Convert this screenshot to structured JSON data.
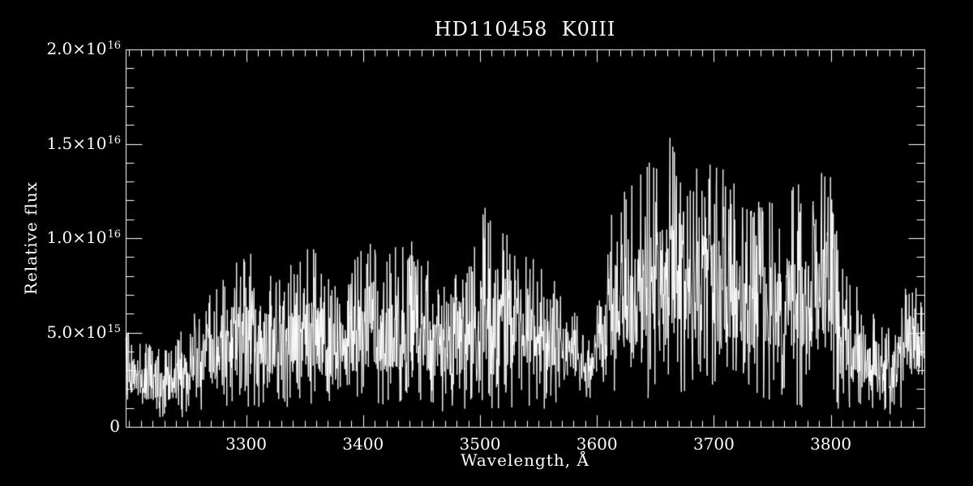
{
  "title": "HD110458  K0III",
  "colors": {
    "background": "#000000",
    "foreground": "#ffffff"
  },
  "chart_data": {
    "type": "line",
    "title": "HD110458  K0III",
    "xlabel": "Wavelength, Å",
    "ylabel": "Relative flux",
    "xlim": [
      3197,
      3880
    ],
    "ylim": [
      0,
      2e+16
    ],
    "grid": false,
    "legend": false,
    "line_color": "#ffffff",
    "x_major_ticks": [
      3300,
      3400,
      3500,
      3600,
      3700,
      3800
    ],
    "x_minor_step": 10,
    "y_major_ticks": [
      0,
      5000000000000000.0,
      1e+16,
      1.5e+16,
      2e+16
    ],
    "y_tick_labels": [
      "0",
      "5.0×10^15",
      "1.0×10^16",
      "1.5×10^16",
      "2.0×10^16"
    ],
    "y_minor_step": 1000000000000000.0,
    "flux_unit": 1000000000000000.0,
    "envelope_top": [
      [
        3197,
        5.0
      ],
      [
        3205,
        5.4
      ],
      [
        3212,
        4.7
      ],
      [
        3222,
        4.2
      ],
      [
        3235,
        4.6
      ],
      [
        3248,
        5.4
      ],
      [
        3260,
        6.4
      ],
      [
        3272,
        7.4
      ],
      [
        3285,
        8.2
      ],
      [
        3295,
        9.0
      ],
      [
        3303,
        9.7
      ],
      [
        3313,
        8.8
      ],
      [
        3323,
        8.2
      ],
      [
        3335,
        8.6
      ],
      [
        3348,
        9.2
      ],
      [
        3356,
        10.3
      ],
      [
        3366,
        8.4
      ],
      [
        3376,
        8.0
      ],
      [
        3388,
        8.5
      ],
      [
        3400,
        9.6
      ],
      [
        3408,
        10.3
      ],
      [
        3418,
        9.2
      ],
      [
        3430,
        9.6
      ],
      [
        3441,
        10.4
      ],
      [
        3451,
        9.2
      ],
      [
        3462,
        8.3
      ],
      [
        3472,
        7.8
      ],
      [
        3483,
        8.6
      ],
      [
        3494,
        9.3
      ],
      [
        3505,
        11.9
      ],
      [
        3514,
        10.2
      ],
      [
        3522,
        11.0
      ],
      [
        3533,
        9.8
      ],
      [
        3545,
        9.0
      ],
      [
        3558,
        8.3
      ],
      [
        3570,
        7.7
      ],
      [
        3582,
        6.2
      ],
      [
        3592,
        4.4
      ],
      [
        3602,
        7.0
      ],
      [
        3611,
        11.4
      ],
      [
        3621,
        12.6
      ],
      [
        3632,
        13.6
      ],
      [
        3645,
        14.8
      ],
      [
        3656,
        15.5
      ],
      [
        3668,
        15.6
      ],
      [
        3679,
        14.6
      ],
      [
        3690,
        13.9
      ],
      [
        3701,
        14.4
      ],
      [
        3712,
        13.4
      ],
      [
        3723,
        12.4
      ],
      [
        3735,
        12.1
      ],
      [
        3746,
        12.6
      ],
      [
        3756,
        11.9
      ],
      [
        3766,
        12.9
      ],
      [
        3778,
        13.2
      ],
      [
        3788,
        14.2
      ],
      [
        3795,
        15.8
      ],
      [
        3803,
        12.0
      ],
      [
        3813,
        8.6
      ],
      [
        3823,
        7.4
      ],
      [
        3835,
        6.2
      ],
      [
        3846,
        5.2
      ],
      [
        3856,
        6.1
      ],
      [
        3866,
        8.6
      ],
      [
        3873,
        7.4
      ],
      [
        3880,
        7.0
      ]
    ],
    "envelope_bottom": [
      [
        3197,
        0.5
      ],
      [
        3230,
        0.2
      ],
      [
        3270,
        0.5
      ],
      [
        3300,
        0.9
      ],
      [
        3350,
        0.8
      ],
      [
        3400,
        0.7
      ],
      [
        3450,
        0.6
      ],
      [
        3500,
        0.8
      ],
      [
        3550,
        0.7
      ],
      [
        3590,
        1.4
      ],
      [
        3610,
        1.0
      ],
      [
        3650,
        1.3
      ],
      [
        3700,
        1.0
      ],
      [
        3750,
        0.9
      ],
      [
        3800,
        0.6
      ],
      [
        3830,
        0.3
      ],
      [
        3855,
        0.6
      ],
      [
        3880,
        1.6
      ]
    ]
  }
}
